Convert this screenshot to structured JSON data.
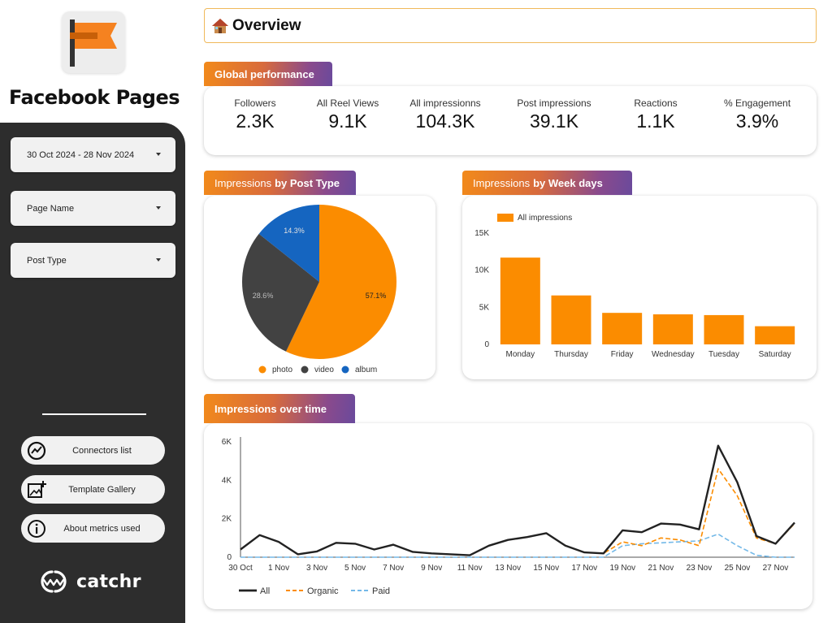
{
  "app": {
    "title": "Facebook Pages"
  },
  "filters": {
    "date_range": "30 Oct 2024 - 28 Nov 2024",
    "page_name": "Page Name",
    "post_type": "Post Type"
  },
  "sidebar_links": {
    "connectors": "Connectors list",
    "gallery": "Template Gallery",
    "about": "About metrics used"
  },
  "brand": {
    "name": "catchr"
  },
  "header": {
    "title": "Overview"
  },
  "global": {
    "title": "Global performance",
    "kpis": [
      {
        "label": "Followers",
        "value": "2.3K"
      },
      {
        "label": "All Reel Views",
        "value": "9.1K"
      },
      {
        "label": "All impressionns",
        "value": "104.3K"
      },
      {
        "label": "Post impressions",
        "value": "39.1K"
      },
      {
        "label": "Reactions",
        "value": "1.1K"
      },
      {
        "label": "% Engagement",
        "value": "3.9%"
      }
    ]
  },
  "post_type_section": {
    "title_prefix": "Impressions",
    "title_bold": "by Post Type"
  },
  "week_section": {
    "title_prefix": "Impressions",
    "title_bold": "by Week days"
  },
  "time_section": {
    "title": "Impressions over time"
  },
  "colors": {
    "orange": "#fb8c00",
    "dark": "#424242",
    "blue": "#1565c0",
    "sidebar": "#2d2d2d",
    "lightblue": "#74b9e8"
  },
  "chart_data": [
    {
      "type": "pie",
      "slices": [
        {
          "name": "photo",
          "value": 57.1,
          "label": "57.1%"
        },
        {
          "name": "video",
          "value": 28.6,
          "label": "28.6%"
        },
        {
          "name": "album",
          "value": 14.3,
          "label": "14.3%"
        }
      ],
      "legend": "bottom"
    },
    {
      "type": "bar",
      "legend": [
        "All impressions"
      ],
      "categories": [
        "Monday",
        "Thursday",
        "Friday",
        "Wednesday",
        "Tuesday",
        "Saturday"
      ],
      "values": [
        11700,
        6600,
        4250,
        4050,
        3950,
        2450
      ],
      "ylim": [
        0,
        15000
      ],
      "yticks": [
        "0",
        "5K",
        "10K",
        "15K"
      ]
    },
    {
      "type": "line",
      "x": [
        "30 Oct",
        "31 Oct",
        "1 Nov",
        "2 Nov",
        "3 Nov",
        "4 Nov",
        "5 Nov",
        "6 Nov",
        "7 Nov",
        "8 Nov",
        "9 Nov",
        "10 Nov",
        "11 Nov",
        "12 Nov",
        "13 Nov",
        "14 Nov",
        "15 Nov",
        "16 Nov",
        "17 Nov",
        "18 Nov",
        "19 Nov",
        "20 Nov",
        "21 Nov",
        "22 Nov",
        "23 Nov",
        "24 Nov",
        "25 Nov",
        "26 Nov",
        "27 Nov",
        "28 Nov"
      ],
      "xticks": [
        "30 Oct",
        "1 Nov",
        "3 Nov",
        "5 Nov",
        "7 Nov",
        "9 Nov",
        "11 Nov",
        "13 Nov",
        "15 Nov",
        "17 Nov",
        "19 Nov",
        "21 Nov",
        "23 Nov",
        "25 Nov",
        "27 Nov"
      ],
      "yticks": [
        "0",
        "2K",
        "4K",
        "6K"
      ],
      "ylim": [
        0,
        6000
      ],
      "series": [
        {
          "name": "All",
          "values": [
            400,
            1150,
            800,
            150,
            300,
            750,
            700,
            400,
            650,
            280,
            200,
            150,
            100,
            600,
            900,
            1050,
            1250,
            600,
            250,
            200,
            1400,
            1300,
            1750,
            1700,
            1450,
            5800,
            3900,
            1100,
            700,
            1800
          ]
        },
        {
          "name": "Organic",
          "values": [
            400,
            1150,
            800,
            150,
            300,
            750,
            700,
            400,
            650,
            280,
            200,
            150,
            100,
            600,
            900,
            1050,
            1250,
            600,
            250,
            200,
            800,
            600,
            1000,
            900,
            600,
            4600,
            3200,
            1000,
            700,
            1750
          ]
        },
        {
          "name": "Paid",
          "values": [
            0,
            0,
            0,
            0,
            0,
            0,
            0,
            0,
            0,
            0,
            0,
            0,
            0,
            0,
            0,
            0,
            0,
            0,
            0,
            0,
            600,
            700,
            750,
            800,
            850,
            1200,
            600,
            100,
            0,
            0
          ]
        }
      ],
      "legend": "bottom-left"
    }
  ]
}
